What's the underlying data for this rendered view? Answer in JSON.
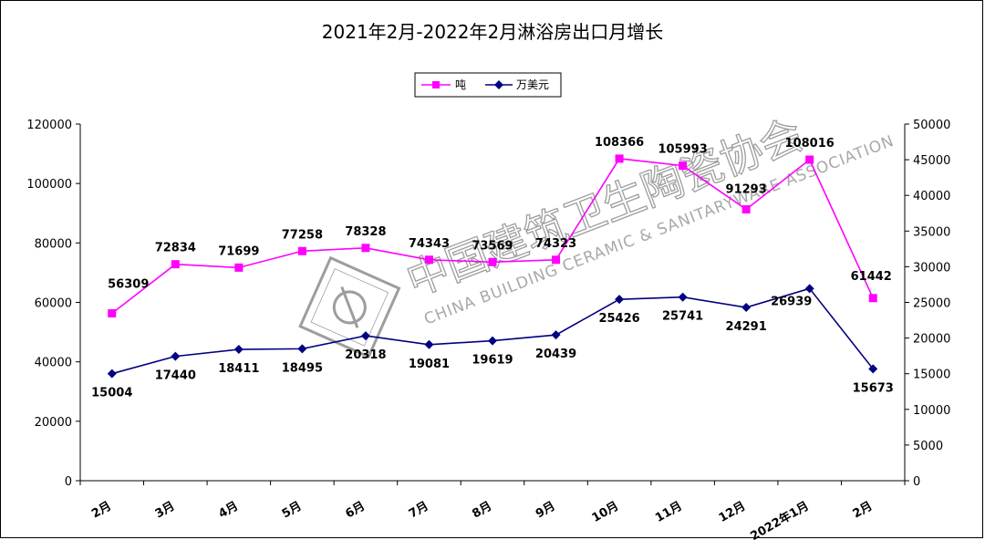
{
  "chart_data": {
    "type": "line",
    "title": "2021年2月-2022年2月淋浴房出口月增长",
    "categories": [
      "2月",
      "3月",
      "4月",
      "5月",
      "6月",
      "7月",
      "8月",
      "9月",
      "10月",
      "11月",
      "12月",
      "2022年1月",
      "2月"
    ],
    "series": [
      {
        "name": "吨",
        "axis": "left",
        "color": "#ff00ff",
        "marker": "square",
        "values": [
          56309,
          72834,
          71699,
          77258,
          78328,
          74343,
          73569,
          74323,
          108366,
          105993,
          91293,
          108016,
          61442
        ]
      },
      {
        "name": "万美元",
        "axis": "right",
        "color": "#000080",
        "marker": "diamond",
        "values": [
          15004,
          17440,
          18411,
          18495,
          20318,
          19081,
          19619,
          20439,
          25426,
          25741,
          24291,
          26939,
          15673
        ]
      }
    ],
    "ylim_left": [
      0,
      120000
    ],
    "yticks_left": [
      0,
      20000,
      40000,
      60000,
      80000,
      100000,
      120000
    ],
    "ylim_right": [
      0,
      50000
    ],
    "yticks_right": [
      0,
      5000,
      10000,
      15000,
      20000,
      25000,
      30000,
      35000,
      40000,
      45000,
      50000
    ],
    "legend_position": "top",
    "grid": false
  },
  "watermark": {
    "chinese": "中国建筑卫生陶瓷协会",
    "english": "CHINA BUILDING CERAMIC & SANITARYWARE ASSOCIATION"
  }
}
